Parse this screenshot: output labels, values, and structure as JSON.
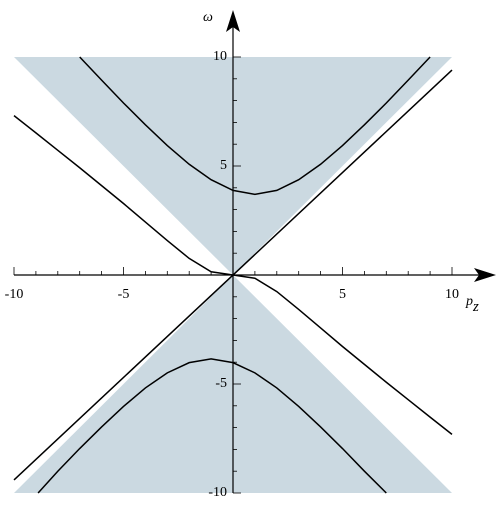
{
  "chart_data": {
    "type": "line",
    "xlabel": {
      "text": "p",
      "subscript": "z"
    },
    "ylabel": "ω",
    "xlim": [
      -10,
      10
    ],
    "ylim": [
      -10,
      10
    ],
    "xticks": [
      -10,
      -5,
      5,
      10
    ],
    "yticks": [
      -10,
      -5,
      5,
      10
    ],
    "xminorticks": [
      -9,
      -8,
      -7,
      -6,
      -4,
      -3,
      -2,
      -1,
      1,
      2,
      3,
      4,
      6,
      7,
      8,
      9
    ],
    "yminorticks": [
      -9,
      -8,
      -7,
      -6,
      -4,
      -3,
      -2,
      -1,
      1,
      2,
      3,
      4,
      6,
      7,
      8,
      9
    ],
    "shaded_regions": [
      {
        "color": "#cbd9e1",
        "x": [
          -10,
          10,
          0
        ],
        "y": [
          10,
          10,
          0
        ]
      },
      {
        "color": "#cbd9e1",
        "x": [
          -10,
          10,
          0
        ],
        "y": [
          -10,
          -10,
          0
        ]
      }
    ],
    "series": [
      {
        "color": "#000000",
        "x": [
          -7,
          -6,
          -5,
          -4,
          -3,
          -2,
          -1,
          0,
          1,
          2,
          3,
          4,
          5,
          6,
          7,
          8,
          9
        ],
        "values": [
          10.0,
          8.94,
          7.89,
          6.89,
          5.94,
          5.08,
          4.37,
          3.88,
          3.7,
          3.88,
          4.37,
          5.08,
          5.94,
          6.89,
          7.89,
          8.94,
          10.0
        ]
      },
      {
        "color": "#000000",
        "x": [
          -8.9,
          -8,
          -7,
          -6,
          -5,
          -4,
          -3,
          -2,
          -1,
          0,
          1,
          2,
          3,
          4,
          5,
          6,
          7
        ],
        "values": [
          -10.0,
          -9.0,
          -7.96,
          -6.97,
          -6.03,
          -5.18,
          -4.49,
          -4.02,
          -3.85,
          -4.02,
          -4.49,
          -5.18,
          -6.03,
          -6.97,
          -7.96,
          -9.0,
          -10.0
        ]
      },
      {
        "color": "#000000",
        "x": [
          -10,
          10
        ],
        "values": [
          -9.4,
          9.4
        ]
      },
      {
        "color": "#000000",
        "x": [
          -10,
          -9,
          -8,
          -7,
          -6,
          -5,
          -4,
          -3,
          -2,
          -1,
          0,
          1,
          2,
          3,
          4,
          5,
          6,
          7,
          8,
          9,
          10
        ],
        "values": [
          7.31,
          6.52,
          5.72,
          4.92,
          4.1,
          3.28,
          2.43,
          1.58,
          0.76,
          0.15,
          0,
          -0.15,
          -0.76,
          -1.58,
          -2.43,
          -3.28,
          -4.1,
          -4.92,
          -5.72,
          -6.52,
          -7.31
        ]
      }
    ]
  }
}
